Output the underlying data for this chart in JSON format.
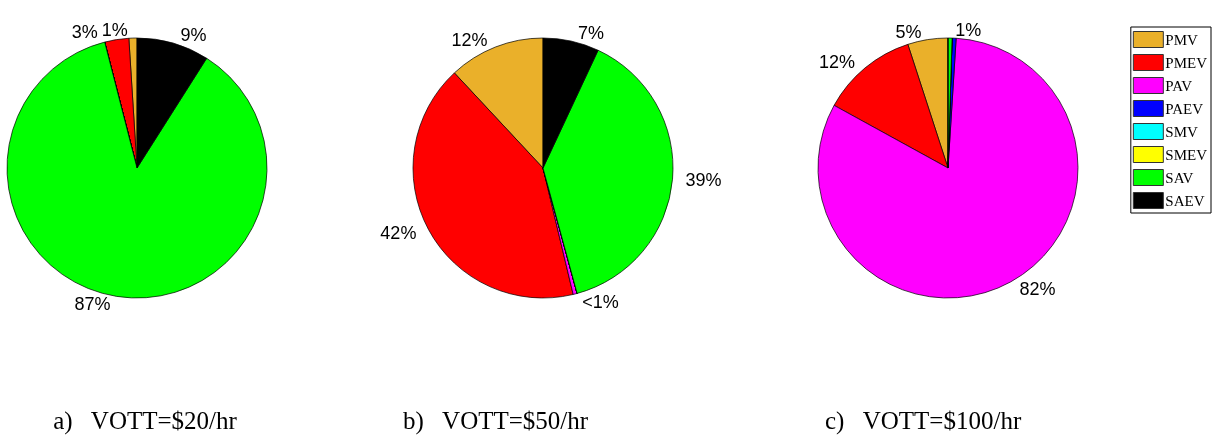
{
  "chart_data": [
    {
      "type": "pie",
      "title": "a)   VOTT=$20/hr",
      "categories": [
        null,
        null,
        null,
        null,
        null,
        null,
        null,
        null
      ],
      "values": [
        1,
        3,
        0,
        0,
        0,
        0,
        87,
        9
      ],
      "colors": [
        "#eab02a",
        "#ff0000",
        "#ff00ff",
        "#0000ff",
        "#00ffff",
        "#ffff00",
        "#00ff00",
        "#000000"
      ],
      "value_labels": [
        "1%",
        "3%",
        null,
        null,
        null,
        null,
        "87%",
        "9%"
      ],
      "legend": false
    },
    {
      "type": "pie",
      "title": "b)   VOTT=$50/hr",
      "categories": [
        null,
        null,
        null,
        null,
        null,
        null,
        null,
        null
      ],
      "values": [
        12,
        42,
        0.5,
        0,
        0,
        0,
        39,
        7
      ],
      "colors": [
        "#eab02a",
        "#ff0000",
        "#ff00ff",
        "#0000ff",
        "#00ffff",
        "#ffff00",
        "#00ff00",
        "#000000"
      ],
      "value_labels": [
        "12%",
        "42%",
        "<1%",
        null,
        null,
        null,
        "39%",
        "7%"
      ],
      "legend": false
    },
    {
      "type": "pie",
      "title": "c)   VOTT=$100/hr",
      "categories": [
        "PMV",
        "PMEV",
        "PAV",
        "PAEV",
        "SMV",
        "SMEV",
        "SAV",
        "SAEV"
      ],
      "values": [
        5,
        12,
        82,
        0.5,
        0,
        0,
        0.5,
        0
      ],
      "colors": [
        "#eab02a",
        "#ff0000",
        "#ff00ff",
        "#0000ff",
        "#00ffff",
        "#ffff00",
        "#00ff00",
        "#000000"
      ],
      "value_labels": [
        "5%",
        "12%",
        "82%",
        null,
        null,
        null,
        "1%",
        null
      ],
      "legend": "right"
    }
  ]
}
